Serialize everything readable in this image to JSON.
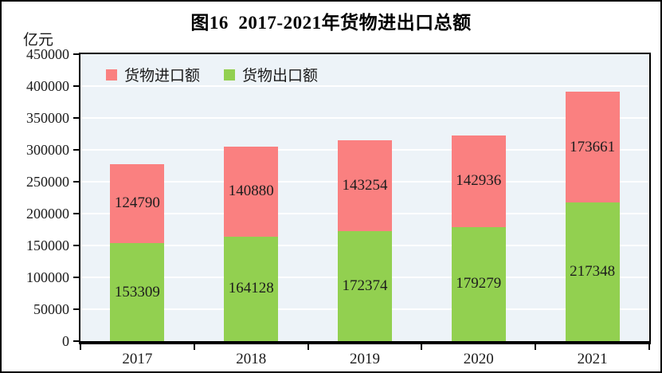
{
  "chart_data": {
    "type": "bar",
    "stacked": true,
    "title": "图16  2017-2021年货物进出口总额",
    "unit_label": "亿元",
    "categories": [
      "2017",
      "2018",
      "2019",
      "2020",
      "2021"
    ],
    "series": [
      {
        "name": "货物出口额",
        "color": "#92d050",
        "values": [
          153309,
          164128,
          172374,
          179279,
          217348
        ]
      },
      {
        "name": "货物进口额",
        "color": "#fa8080",
        "values": [
          124790,
          140880,
          143254,
          142936,
          173661
        ]
      }
    ],
    "legend_order": [
      "货物进口额",
      "货物出口额"
    ],
    "ylim": [
      0,
      450000
    ],
    "ytick_step": 50000,
    "ytick_labels": [
      "0",
      "50000",
      "100000",
      "150000",
      "200000",
      "250000",
      "300000",
      "350000",
      "400000",
      "450000"
    ],
    "grid": "horizontal",
    "grid_color": "#ffffff",
    "plot_background": "#edf3f8",
    "axis_color": "#000000",
    "legend_position": "top-left-inside"
  }
}
